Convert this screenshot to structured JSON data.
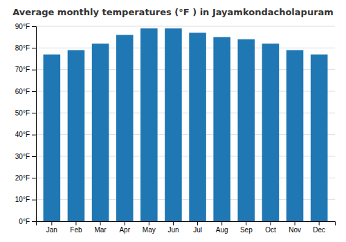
{
  "chart_data": {
    "type": "bar",
    "title": "Average monthly temperatures (°F ) in Jayamkondacholapuram",
    "categories": [
      "Jan",
      "Feb",
      "Mar",
      "Apr",
      "May",
      "Jun",
      "Jul",
      "Aug",
      "Sep",
      "Oct",
      "Nov",
      "Dec"
    ],
    "values": [
      77,
      79,
      82,
      86,
      89,
      89,
      87,
      85,
      84,
      82,
      79,
      77
    ],
    "ylim": [
      0,
      90
    ],
    "yticks": [
      {
        "value": 0,
        "label": "0°F"
      },
      {
        "value": 10,
        "label": "10°F"
      },
      {
        "value": 20,
        "label": "20°F"
      },
      {
        "value": 30,
        "label": "30°F"
      },
      {
        "value": 40,
        "label": "40°F"
      },
      {
        "value": 50,
        "label": "50°F"
      },
      {
        "value": 60,
        "label": "60°F"
      },
      {
        "value": 70,
        "label": "70°F"
      },
      {
        "value": 80,
        "label": "80°F"
      },
      {
        "value": 90,
        "label": "90°F"
      }
    ],
    "grid": true
  }
}
